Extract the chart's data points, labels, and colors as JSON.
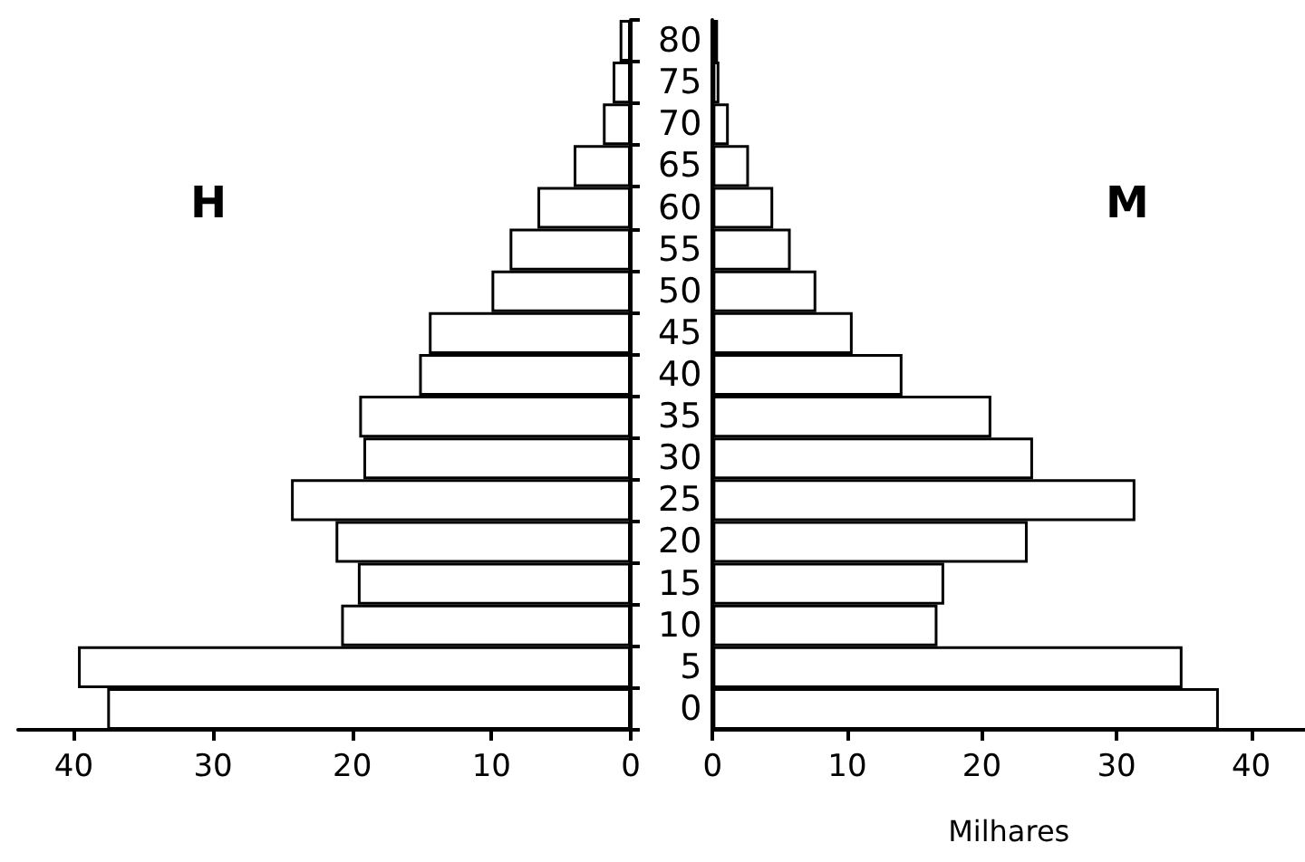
{
  "chart_data": [
    {
      "type": "bar",
      "orientation": "horizontal",
      "title": "H",
      "categories": [
        "80",
        "75",
        "70",
        "65",
        "60",
        "55",
        "50",
        "45",
        "40",
        "35",
        "30",
        "25",
        "20",
        "15",
        "10",
        "5",
        "0"
      ],
      "series": [
        {
          "color": "#ffffff",
          "values": [
            0.8,
            1.3,
            2.0,
            4.1,
            6.7,
            8.7,
            10.0,
            14.5,
            15.2,
            19.5,
            19.2,
            24.4,
            21.2,
            19.6,
            20.8,
            39.7,
            37.6
          ]
        }
      ],
      "xlim": [
        44,
        0
      ],
      "xticks": [
        40,
        30,
        20,
        10,
        0
      ],
      "tick_labels": "x"
    },
    {
      "type": "bar",
      "orientation": "horizontal",
      "title": "M",
      "xlabel": "Milhares",
      "categories": [
        "80",
        "75",
        "70",
        "65",
        "60",
        "55",
        "50",
        "45",
        "40",
        "35",
        "30",
        "25",
        "20",
        "15",
        "10",
        "5",
        "0"
      ],
      "series": [
        {
          "color": "#ffffff",
          "values": [
            0.4,
            0.5,
            1.2,
            2.7,
            4.5,
            5.8,
            7.7,
            10.4,
            14.1,
            20.7,
            23.8,
            31.4,
            23.4,
            17.2,
            16.7,
            34.9,
            37.6
          ]
        }
      ],
      "xlim": [
        0,
        44
      ],
      "xticks": [
        0,
        10,
        20,
        30,
        40
      ]
    }
  ]
}
